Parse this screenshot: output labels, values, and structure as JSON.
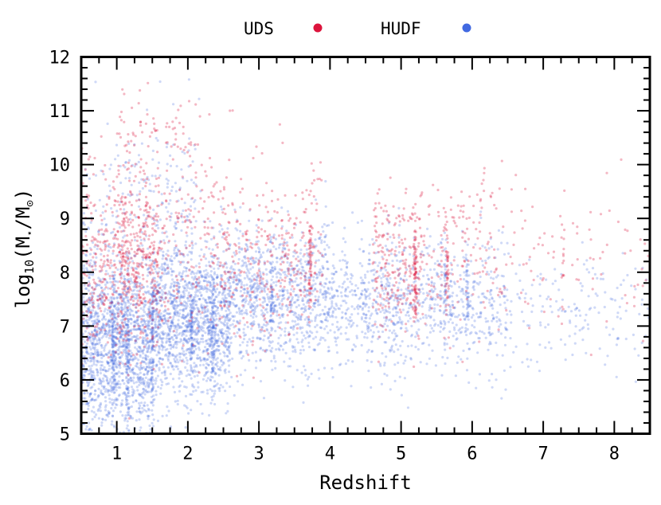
{
  "chart_data": {
    "type": "scatter",
    "title": "",
    "xlabel": "Redshift",
    "ylabel_main": "log",
    "ylabel_sub": "10",
    "ylabel_rest": "(M",
    "ylabel_star": "⋆",
    "ylabel_mid": "/M",
    "ylabel_sun": "⊙",
    "ylabel_close": ")",
    "xlim": [
      0.5,
      8.5
    ],
    "ylim": [
      5,
      12
    ],
    "xticks": [
      1,
      2,
      3,
      4,
      5,
      6,
      7,
      8
    ],
    "yticks": [
      5,
      6,
      7,
      8,
      9,
      10,
      11,
      12
    ],
    "xtick_labels": [
      "1",
      "2",
      "3",
      "4",
      "5",
      "6",
      "7",
      "8"
    ],
    "ytick_labels": [
      "5",
      "6",
      "7",
      "8",
      "9",
      "10",
      "11",
      "12"
    ],
    "legend_position": "top-center-outside",
    "series": [
      {
        "name": "UDS",
        "color": "#dc143c",
        "opacity": 0.3,
        "seed": 7,
        "clusters": [
          {
            "x": [
              0.5,
              1.6
            ],
            "y_mean": 8.2,
            "y_sd": 0.9,
            "n": 520
          },
          {
            "x": [
              1.0,
              2.6
            ],
            "y_mean": 8.4,
            "y_sd": 0.9,
            "n": 320
          },
          {
            "x": [
              2.5,
              3.9
            ],
            "y_mean": 8.3,
            "y_sd": 0.8,
            "n": 300
          },
          {
            "x": [
              4.6,
              5.3
            ],
            "y_mean": 8.2,
            "y_sd": 0.65,
            "n": 230
          },
          {
            "x": [
              5.3,
              6.4
            ],
            "y_mean": 8.4,
            "y_sd": 0.65,
            "n": 150
          },
          {
            "x": [
              6.4,
              8.5
            ],
            "y_mean": 8.3,
            "y_sd": 0.75,
            "n": 90
          },
          {
            "x": [
              1.0,
              2.2
            ],
            "y_mean": 10.6,
            "y_sd": 0.35,
            "n": 60
          }
        ],
        "stripes": [
          {
            "x": 3.72,
            "y_mean": 8.1,
            "y_sd": 0.55,
            "n": 60
          },
          {
            "x": 5.2,
            "y_mean": 8.0,
            "y_sd": 0.45,
            "n": 70
          },
          {
            "x": 5.65,
            "y_mean": 8.0,
            "y_sd": 0.5,
            "n": 40
          },
          {
            "x": 7.28,
            "y_mean": 8.0,
            "y_sd": 0.3,
            "n": 12
          }
        ]
      },
      {
        "name": "HUDF",
        "color": "#4169e1",
        "opacity": 0.25,
        "seed": 13,
        "clusters": [
          {
            "x": [
              0.5,
              1.5
            ],
            "y_mean": 6.7,
            "y_sd": 0.85,
            "n": 1500
          },
          {
            "x": [
              1.5,
              2.6
            ],
            "y_mean": 7.1,
            "y_sd": 0.75,
            "n": 1400
          },
          {
            "x": [
              2.6,
              4.0
            ],
            "y_mean": 7.5,
            "y_sd": 0.65,
            "n": 900
          },
          {
            "x": [
              4.0,
              5.2
            ],
            "y_mean": 7.4,
            "y_sd": 0.6,
            "n": 500
          },
          {
            "x": [
              5.2,
              6.5
            ],
            "y_mean": 7.4,
            "y_sd": 0.6,
            "n": 400
          },
          {
            "x": [
              6.5,
              8.5
            ],
            "y_mean": 7.3,
            "y_sd": 0.55,
            "n": 160
          },
          {
            "x": [
              0.5,
              2.2
            ],
            "y_mean": 9.4,
            "y_sd": 0.7,
            "n": 180
          }
        ],
        "stripes": [
          {
            "x": 0.95,
            "y_mean": 6.6,
            "y_sd": 0.7,
            "n": 90
          },
          {
            "x": 1.15,
            "y_mean": 6.5,
            "y_sd": 0.75,
            "n": 90
          },
          {
            "x": 1.5,
            "y_mean": 6.7,
            "y_sd": 0.7,
            "n": 80
          },
          {
            "x": 2.05,
            "y_mean": 7.0,
            "y_sd": 0.6,
            "n": 80
          },
          {
            "x": 2.35,
            "y_mean": 7.1,
            "y_sd": 0.6,
            "n": 70
          },
          {
            "x": 3.18,
            "y_mean": 7.5,
            "y_sd": 0.5,
            "n": 50
          },
          {
            "x": 5.62,
            "y_mean": 7.7,
            "y_sd": 0.45,
            "n": 40
          },
          {
            "x": 5.93,
            "y_mean": 7.6,
            "y_sd": 0.45,
            "n": 40
          }
        ]
      }
    ]
  }
}
